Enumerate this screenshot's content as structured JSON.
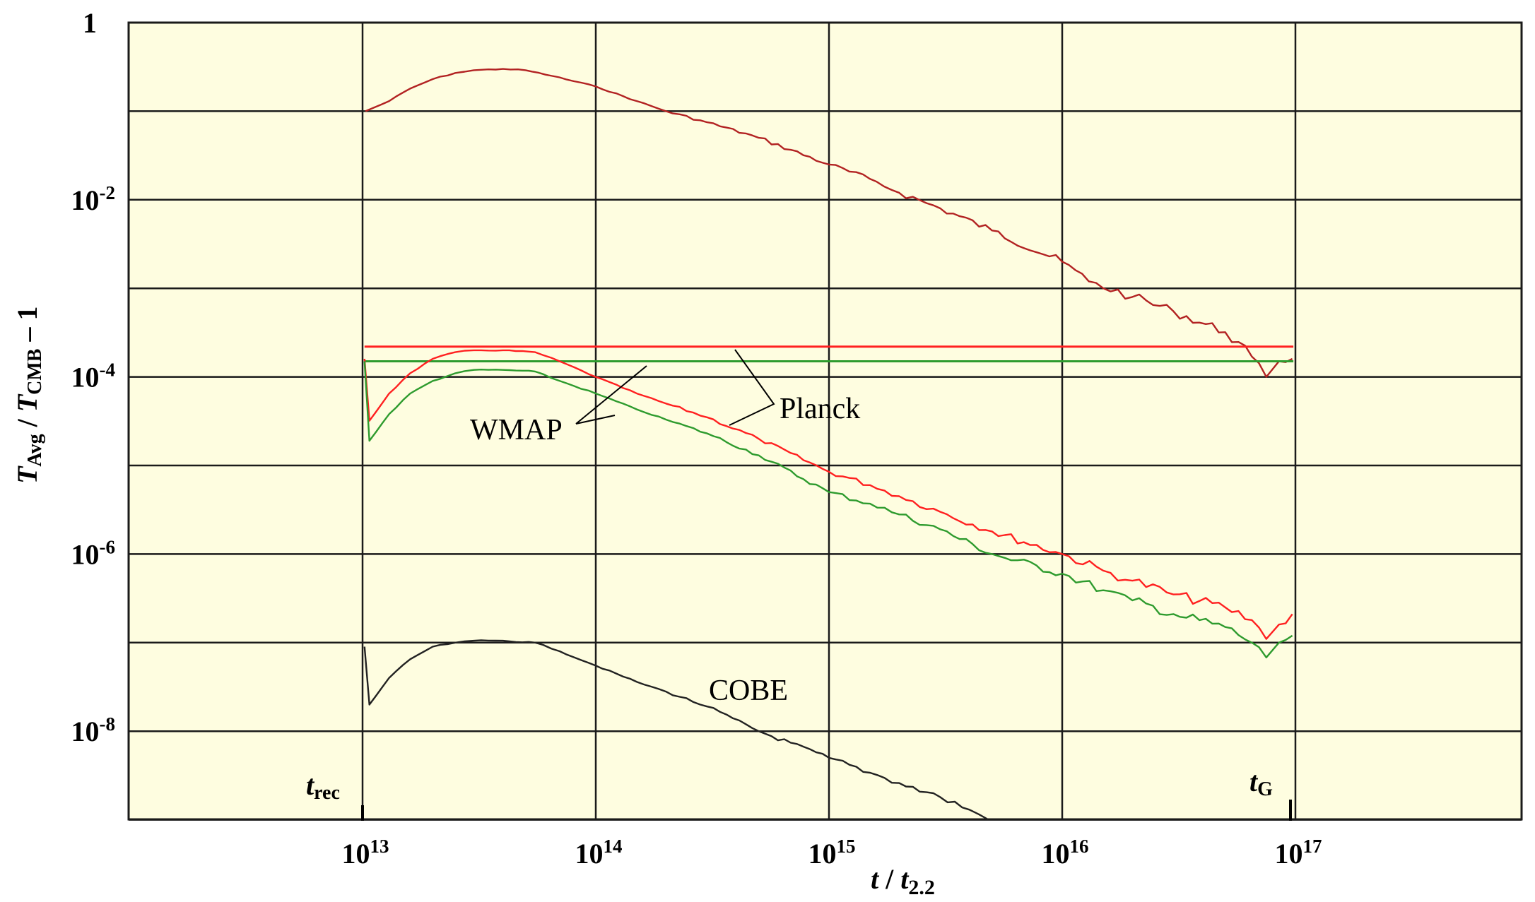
{
  "chart_data": {
    "type": "line",
    "title": "",
    "xlabel": "t / t_2.2",
    "ylabel": "T_Avg / T_CMB - 1",
    "xscale": "log",
    "yscale": "log",
    "xlim": [
      1000000000000.0,
      1e+18
    ],
    "ylim": [
      1e-10,
      1.0
    ],
    "grid": true,
    "background_color": "#fefde0",
    "x_ticks": [
      {
        "base": "10",
        "exp": "13",
        "value": 10000000000000.0
      },
      {
        "base": "10",
        "exp": "14",
        "value": 100000000000000.0
      },
      {
        "base": "10",
        "exp": "15",
        "value": 1000000000000000.0
      },
      {
        "base": "10",
        "exp": "16",
        "value": 1e+16
      },
      {
        "base": "10",
        "exp": "17",
        "value": 1e+17
      }
    ],
    "y_ticks": [
      {
        "base": "1",
        "exp": "",
        "value": 1
      },
      {
        "base": "10",
        "exp": "-2",
        "value": 0.01
      },
      {
        "base": "10",
        "exp": "-4",
        "value": 0.0001
      },
      {
        "base": "10",
        "exp": "-6",
        "value": 1e-06
      },
      {
        "base": "10",
        "exp": "-8",
        "value": 1e-08
      }
    ],
    "annotations": [
      {
        "text": "WMAP",
        "x": 30000000000000.0,
        "y": 2.5e-05
      },
      {
        "text": "Planck",
        "x": 1800000000000000.0,
        "y": 4e-05
      },
      {
        "text": "COBE",
        "x": 2300000000000000.0,
        "y": 1.1e-07
      },
      {
        "text": "t_rec",
        "x": 10000000000000.0,
        "y": 3e-10
      },
      {
        "text": "t_G",
        "x": 1e+17,
        "y": 3e-10
      }
    ],
    "series": [
      {
        "name": "Top curve (dark red)",
        "color": "#b22222",
        "points": [
          [
            10300000000000.0,
            0.1
          ],
          [
            13000000000000.0,
            0.13
          ],
          [
            16000000000000.0,
            0.18
          ],
          [
            20000000000000.0,
            0.23
          ],
          [
            25000000000000.0,
            0.27
          ],
          [
            30000000000000.0,
            0.29
          ],
          [
            40000000000000.0,
            0.3
          ],
          [
            50000000000000.0,
            0.29
          ],
          [
            65000000000000.0,
            0.25
          ],
          [
            100000000000000.0,
            0.19
          ],
          [
            150000000000000.0,
            0.13
          ],
          [
            200000000000000.0,
            0.1
          ],
          [
            300000000000000.0,
            0.075
          ],
          [
            500000000000000.0,
            0.05
          ],
          [
            1000000000000000.0,
            0.025
          ],
          [
            1600000000000000.0,
            0.016
          ],
          [
            2000000000000000.0,
            0.012
          ],
          [
            3000000000000000.0,
            0.008
          ],
          [
            5000000000000000.0,
            0.0045
          ],
          [
            1e+16,
            0.002
          ],
          [
            1.3e+16,
            0.0012
          ],
          [
            2e+16,
            0.0008
          ],
          [
            3e+16,
            0.00055
          ],
          [
            5e+16,
            0.00032
          ],
          [
            6.5e+16,
            0.00017
          ],
          [
            7.5e+16,
            0.0001
          ],
          [
            8.5e+16,
            0.00015
          ],
          [
            9.7e+16,
            0.00016
          ]
        ]
      },
      {
        "name": "Planck (horizontal, red)",
        "color": "#ff2020",
        "points": [
          [
            10200000000000.0,
            0.00022
          ],
          [
            9.8e+16,
            0.00022
          ]
        ]
      },
      {
        "name": "WMAP (horizontal, green)",
        "color": "#2e9b2e",
        "points": [
          [
            10200000000000.0,
            0.00015
          ],
          [
            9.8e+16,
            0.00015
          ]
        ]
      },
      {
        "name": "Red curve",
        "color": "#ff2020",
        "points": [
          [
            10200000000000.0,
            0.00016
          ],
          [
            10700000000000.0,
            3.2e-05
          ],
          [
            13000000000000.0,
            6.5e-05
          ],
          [
            16000000000000.0,
            0.00011
          ],
          [
            20000000000000.0,
            0.00016
          ],
          [
            25000000000000.0,
            0.00019
          ],
          [
            30000000000000.0,
            0.0002
          ],
          [
            40000000000000.0,
            0.0002
          ],
          [
            55000000000000.0,
            0.00019
          ],
          [
            70000000000000.0,
            0.00015
          ],
          [
            100000000000000.0,
            0.0001
          ],
          [
            150000000000000.0,
            6.5e-05
          ],
          [
            200000000000000.0,
            5e-05
          ],
          [
            300000000000000.0,
            3.5e-05
          ],
          [
            500000000000000.0,
            2e-05
          ],
          [
            1000000000000000.0,
            8.5e-06
          ],
          [
            1500000000000000.0,
            6e-06
          ],
          [
            2000000000000000.0,
            4.5e-06
          ],
          [
            3000000000000000.0,
            3e-06
          ],
          [
            5000000000000000.0,
            1.8e-06
          ],
          [
            1e+16,
            1e-06
          ],
          [
            1.5e+16,
            6.5e-07
          ],
          [
            2e+16,
            5e-07
          ],
          [
            3e+16,
            3.5e-07
          ],
          [
            5e+16,
            2.5e-07
          ],
          [
            6.5e+16,
            1.8e-07
          ],
          [
            7.5e+16,
            1.1e-07
          ],
          [
            8.5e+16,
            1.6e-07
          ],
          [
            9.7e+16,
            2.1e-07
          ]
        ]
      },
      {
        "name": "Green curve",
        "color": "#2e9b2e",
        "points": [
          [
            10200000000000.0,
            0.00015
          ],
          [
            10700000000000.0,
            1.9e-05
          ],
          [
            13000000000000.0,
            3.8e-05
          ],
          [
            16000000000000.0,
            6.5e-05
          ],
          [
            20000000000000.0,
            9e-05
          ],
          [
            25000000000000.0,
            0.00011
          ],
          [
            30000000000000.0,
            0.00012
          ],
          [
            40000000000000.0,
            0.00012
          ],
          [
            55000000000000.0,
            0.000115
          ],
          [
            70000000000000.0,
            9e-05
          ],
          [
            100000000000000.0,
            6.5e-05
          ],
          [
            150000000000000.0,
            4.3e-05
          ],
          [
            200000000000000.0,
            3.3e-05
          ],
          [
            300000000000000.0,
            2.3e-05
          ],
          [
            500000000000000.0,
            1.3e-05
          ],
          [
            1000000000000000.0,
            5e-06
          ],
          [
            1500000000000000.0,
            3.7e-06
          ],
          [
            2000000000000000.0,
            2.8e-06
          ],
          [
            3000000000000000.0,
            1.9e-06
          ],
          [
            5000000000000000.0,
            1e-06
          ],
          [
            1e+16,
            6e-07
          ],
          [
            1.5e+16,
            3.9e-07
          ],
          [
            2e+16,
            3e-07
          ],
          [
            3e+16,
            2.1e-07
          ],
          [
            5e+16,
            1.5e-07
          ],
          [
            6.5e+16,
            1e-07
          ],
          [
            7.5e+16,
            6.8e-08
          ],
          [
            8.5e+16,
            1e-07
          ],
          [
            9.7e+16,
            1.2e-07
          ]
        ]
      },
      {
        "name": "COBE",
        "color": "#222222",
        "points": [
          [
            10200000000000.0,
            9e-08
          ],
          [
            10700000000000.0,
            2e-08
          ],
          [
            13000000000000.0,
            4e-08
          ],
          [
            16000000000000.0,
            6.5e-08
          ],
          [
            20000000000000.0,
            9e-08
          ],
          [
            25000000000000.0,
            1e-07
          ],
          [
            30000000000000.0,
            1.05e-07
          ],
          [
            40000000000000.0,
            1.05e-07
          ],
          [
            55000000000000.0,
            1e-07
          ],
          [
            70000000000000.0,
            8e-08
          ],
          [
            100000000000000.0,
            5.5e-08
          ],
          [
            150000000000000.0,
            3.6e-08
          ],
          [
            200000000000000.0,
            2.8e-08
          ],
          [
            300000000000000.0,
            1.9e-08
          ],
          [
            500000000000000.0,
            1e-08
          ],
          [
            1000000000000000.0,
            5e-09
          ],
          [
            1500000000000000.0,
            3.4e-09
          ],
          [
            2000000000000000.0,
            2.6e-09
          ],
          [
            3000000000000000.0,
            1.8e-09
          ],
          [
            4000000000000000.0,
            1.3e-09
          ],
          [
            4800000000000000.0,
            1e-09
          ]
        ]
      }
    ]
  }
}
